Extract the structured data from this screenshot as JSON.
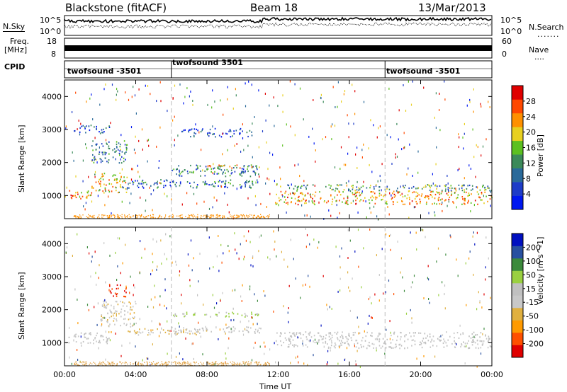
{
  "header": {
    "station": "Blackstone (fitACF)",
    "beam": "Beam 18",
    "date": "13/Mar/2013"
  },
  "left_labels": {
    "nsky": "N.Sky",
    "nsky_ticks": [
      "10^5",
      "10^0"
    ],
    "freq": "Freq.",
    "freq_unit": "[MHz]",
    "freq_ticks": [
      "18",
      "8"
    ],
    "cpid": "CPID"
  },
  "right_labels": {
    "nsearch": "N.Search",
    "nsearch_ticks": [
      "10^5",
      "10^0"
    ],
    "nave": "Nave",
    "nave_ticks": [
      "60",
      "0"
    ]
  },
  "cpid_segments": [
    {
      "label": "twofsound -3501",
      "start_hour": 0.0
    },
    {
      "label": "twofsound 3501",
      "start_hour": 6.0
    },
    {
      "label": "twofsound -3501",
      "start_hour": 18.0
    }
  ],
  "colors": {
    "power": [
      "#0018f0",
      "#1e3cc8",
      "#2a6a9a",
      "#3c8a5a",
      "#5cc020",
      "#e8d020",
      "#ff9000",
      "#ff4800",
      "#e00000"
    ],
    "velocity": [
      "#e00000",
      "#ff5000",
      "#ff9a00",
      "#e0b040",
      "#c8c8c8",
      "#c0c0c0",
      "#9ad040",
      "#3c8a3c",
      "#2850a0",
      "#0010c0"
    ]
  },
  "chart_data": [
    {
      "type": "heatmap",
      "name": "power",
      "xlabel": "",
      "ylabel": "Slant Range [km]",
      "xlim": [
        0,
        24
      ],
      "ylim": [
        300,
        4500
      ],
      "yticks": [
        "1000",
        "2000",
        "3000",
        "4000"
      ],
      "colorbar": {
        "label": "Power [dB]",
        "ticks": [
          "4",
          "8",
          "12",
          "16",
          "20",
          "24",
          "28"
        ],
        "range": [
          0,
          30
        ]
      },
      "bands": [
        {
          "x": [
            0,
            1.5
          ],
          "y": [
            900,
            1200
          ],
          "level": 22
        },
        {
          "x": [
            1.5,
            3.5
          ],
          "y": [
            1100,
            1700
          ],
          "level": 18
        },
        {
          "x": [
            1.5,
            3.5
          ],
          "y": [
            2000,
            2700
          ],
          "level": 10
        },
        {
          "x": [
            0.5,
            2.5
          ],
          "y": [
            2900,
            3150
          ],
          "level": 6
        },
        {
          "x": [
            3.5,
            11.0
          ],
          "y": [
            1250,
            1500
          ],
          "level": 8
        },
        {
          "x": [
            6.0,
            11.0
          ],
          "y": [
            1600,
            1950
          ],
          "level": 10
        },
        {
          "x": [
            8.0,
            11.0
          ],
          "y": [
            1850,
            1950
          ],
          "level": 20
        },
        {
          "x": [
            6.5,
            10.5
          ],
          "y": [
            2800,
            3050
          ],
          "level": 5
        },
        {
          "x": [
            11.8,
            24.0
          ],
          "y": [
            750,
            1150
          ],
          "level": 21
        },
        {
          "x": [
            12.0,
            24.0
          ],
          "y": [
            1150,
            1350
          ],
          "level": 12
        }
      ]
    },
    {
      "type": "heatmap",
      "name": "velocity",
      "xlabel": "Time UT",
      "ylabel": "Slant Range [km]",
      "xlim": [
        0,
        24
      ],
      "xticks": [
        "00:00",
        "04:00",
        "08:00",
        "12:00",
        "16:00",
        "20:00",
        "00:00"
      ],
      "ylim": [
        300,
        4500
      ],
      "yticks": [
        "1000",
        "2000",
        "3000",
        "4000"
      ],
      "colorbar": {
        "label": "Velocity [m s^-1]",
        "ticks": [
          "-200",
          "-100",
          "-50",
          "-15",
          "15",
          "50",
          "100",
          "200"
        ],
        "range": [
          -250,
          250
        ]
      },
      "bands": [
        {
          "x": [
            0,
            2.5
          ],
          "y": [
            1000,
            1350
          ],
          "level": 0
        },
        {
          "x": [
            2.5,
            3.5
          ],
          "y": [
            2400,
            2800
          ],
          "level": -200
        },
        {
          "x": [
            2.0,
            4.0
          ],
          "y": [
            1500,
            2300
          ],
          "level": -40
        },
        {
          "x": [
            3.5,
            8.0
          ],
          "y": [
            1250,
            1450
          ],
          "level": -60
        },
        {
          "x": [
            6.0,
            11.0
          ],
          "y": [
            1800,
            1950
          ],
          "level": 60
        },
        {
          "x": [
            6.0,
            11.0
          ],
          "y": [
            1300,
            1500
          ],
          "level": 0
        },
        {
          "x": [
            11.8,
            24.0
          ],
          "y": [
            850,
            1350
          ],
          "level": 0
        }
      ]
    }
  ]
}
